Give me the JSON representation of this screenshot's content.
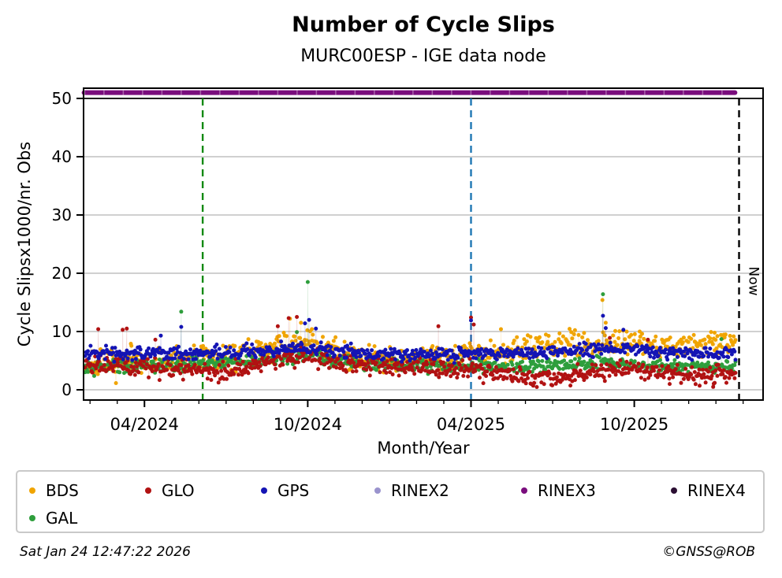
{
  "header": {
    "title": "Number of Cycle Slips",
    "subtitle": "MURC00ESP - IGE data node"
  },
  "footer": {
    "timestamp": "Sat Jan 24 12:47:22 2026",
    "credit": "©GNSS@ROB"
  },
  "legend": {
    "items": [
      {
        "id": "bds",
        "label": "BDS",
        "color": "#f0a400"
      },
      {
        "id": "glo",
        "label": "GLO",
        "color": "#b11212"
      },
      {
        "id": "gps",
        "label": "GPS",
        "color": "#1414b4"
      },
      {
        "id": "rinex2",
        "label": "RINEX2",
        "color": "#9a93cd"
      },
      {
        "id": "rinex3",
        "label": "RINEX3",
        "color": "#7a0d7d"
      },
      {
        "id": "rinex4",
        "label": "RINEX4",
        "color": "#2b0e33"
      },
      {
        "id": "gal",
        "label": "GAL",
        "color": "#2e9e3c"
      }
    ]
  },
  "chart_data": {
    "type": "scatter",
    "title": "Number of Cycle Slips",
    "subtitle": "MURC00ESP - IGE data node",
    "xlabel": "Month/Year",
    "ylabel": "Cycle Slipsx1000/nr. Obs",
    "x_unit": "months_since_2024-01-01",
    "x_shown_range": [
      0.76,
      25.73
    ],
    "x_data_range": [
      0.82,
      24.75
    ],
    "x_major_ticks": [
      {
        "m": 3,
        "label": "04/2024"
      },
      {
        "m": 9,
        "label": "10/2024"
      },
      {
        "m": 15,
        "label": "04/2025"
      },
      {
        "m": 21,
        "label": "10/2025"
      }
    ],
    "x_minor_tick_months": [
      1,
      2,
      4,
      5,
      6,
      7,
      8,
      10,
      11,
      12,
      13,
      14,
      16,
      17,
      18,
      19,
      20,
      22,
      23,
      24,
      25
    ],
    "y_shown_range": [
      -1.76,
      51.75
    ],
    "y_ticks": [
      0,
      10,
      20,
      30,
      40,
      50
    ],
    "gridlines_y_gray": [
      0,
      10,
      20,
      30,
      40
    ],
    "gridlines_y_black": [
      50
    ],
    "grid": "horizontal only",
    "legend_position": "below plot, 6 columns",
    "reference_lines": [
      {
        "name": "rinex3-line",
        "type": "hline",
        "y": 51,
        "m_from": 0.78,
        "m_to": 24.7,
        "color": "#7a0d7d",
        "width": 6,
        "style": "solid"
      },
      {
        "name": "event-line-green",
        "type": "vline",
        "m": 5.14,
        "color": "#128912",
        "style": "dashed"
      },
      {
        "name": "event-line-blue",
        "type": "vline",
        "m": 15.0,
        "color": "#1f77b4",
        "style": "dashed"
      },
      {
        "name": "now-line",
        "type": "vline",
        "m": 24.85,
        "color": "#000000",
        "style": "dashed",
        "label": "Now"
      }
    ],
    "points_per_month": 30,
    "seed": 7,
    "marker_radius": 2.5,
    "series": [
      {
        "name": "BDS",
        "color": "#f0a400",
        "sd": 1.15,
        "mean_profile": [
          [
            0.9,
            4.2
          ],
          [
            2,
            4.4
          ],
          [
            4,
            5.0
          ],
          [
            6,
            5.5
          ],
          [
            7,
            6.4
          ],
          [
            8,
            7.6
          ],
          [
            9,
            8.2
          ],
          [
            9.6,
            7.4
          ],
          [
            10.5,
            6.2
          ],
          [
            11.5,
            5.5
          ],
          [
            12.5,
            5.4
          ],
          [
            14,
            6.0
          ],
          [
            15,
            6.2
          ],
          [
            16,
            6.6
          ],
          [
            17,
            7.2
          ],
          [
            18,
            7.6
          ],
          [
            19,
            7.8
          ],
          [
            20,
            8.2
          ],
          [
            21,
            8.3
          ],
          [
            22,
            7.6
          ],
          [
            23,
            7.4
          ],
          [
            24,
            8.0
          ],
          [
            24.75,
            8.5
          ]
        ],
        "outliers": [
          [
            2.5,
            7.9
          ],
          [
            8.35,
            12.2
          ],
          [
            8.75,
            11.5
          ],
          [
            9.15,
            10.4
          ],
          [
            16.1,
            10.4
          ],
          [
            19.83,
            15.4
          ],
          [
            19.95,
            11.5
          ],
          [
            20.3,
            10.1
          ],
          [
            21.2,
            10.0
          ],
          [
            23.95,
            9.8
          ]
        ]
      },
      {
        "name": "GAL",
        "color": "#2e9e3c",
        "sd": 0.55,
        "mean_profile": [
          [
            0.9,
            4.0
          ],
          [
            3,
            4.2
          ],
          [
            5,
            4.4
          ],
          [
            7,
            4.9
          ],
          [
            8,
            5.7
          ],
          [
            9,
            6.2
          ],
          [
            9.8,
            5.3
          ],
          [
            11,
            4.4
          ],
          [
            13,
            4.2
          ],
          [
            15,
            4.1
          ],
          [
            17,
            4.0
          ],
          [
            18,
            4.2
          ],
          [
            19.9,
            4.6
          ],
          [
            21,
            4.2
          ],
          [
            22.5,
            3.9
          ],
          [
            24.75,
            4.1
          ]
        ],
        "outliers": [
          [
            4.35,
            13.4
          ],
          [
            8.6,
            9.9
          ],
          [
            9.0,
            18.5
          ],
          [
            19.85,
            16.4
          ],
          [
            24.2,
            8.7
          ]
        ]
      },
      {
        "name": "GLO",
        "color": "#b11212",
        "sd": 0.8,
        "mean_profile": [
          [
            0.9,
            4.6
          ],
          [
            2,
            4.3
          ],
          [
            3,
            3.9
          ],
          [
            4.5,
            3.5
          ],
          [
            6,
            3.1
          ],
          [
            7,
            4.0
          ],
          [
            8,
            5.2
          ],
          [
            8.8,
            5.8
          ],
          [
            9.6,
            5.0
          ],
          [
            10.5,
            4.3
          ],
          [
            12,
            4.0
          ],
          [
            13.5,
            3.9
          ],
          [
            15,
            3.6
          ],
          [
            16,
            2.8
          ],
          [
            17,
            2.3
          ],
          [
            18,
            2.1
          ],
          [
            19,
            2.4
          ],
          [
            19.9,
            3.2
          ],
          [
            20.7,
            3.8
          ],
          [
            21.5,
            3.2
          ],
          [
            22.5,
            2.8
          ],
          [
            23.5,
            2.5
          ],
          [
            24.75,
            2.9
          ]
        ],
        "outliers": [
          [
            1.3,
            10.4
          ],
          [
            2.2,
            10.3
          ],
          [
            2.35,
            10.5
          ],
          [
            3.4,
            8.6
          ],
          [
            7.9,
            10.9
          ],
          [
            8.3,
            12.3
          ],
          [
            8.6,
            12.5
          ],
          [
            13.8,
            10.9
          ],
          [
            15.0,
            12.4
          ],
          [
            15.1,
            11.2
          ],
          [
            20.1,
            8.9
          ],
          [
            21.5,
            8.6
          ],
          [
            22.3,
            1.0
          ],
          [
            23.4,
            0.7
          ],
          [
            23.9,
            0.5
          ]
        ]
      },
      {
        "name": "GPS",
        "color": "#1414b4",
        "sd": 0.55,
        "mean_profile": [
          [
            0.9,
            6.3
          ],
          [
            3,
            6.2
          ],
          [
            6,
            6.2
          ],
          [
            7.5,
            6.8
          ],
          [
            8.5,
            7.3
          ],
          [
            9.5,
            7.0
          ],
          [
            11,
            6.2
          ],
          [
            13,
            5.9
          ],
          [
            15,
            6.2
          ],
          [
            17,
            6.4
          ],
          [
            18.5,
            6.7
          ],
          [
            20,
            7.0
          ],
          [
            21,
            7.0
          ],
          [
            22,
            6.5
          ],
          [
            23.5,
            6.3
          ],
          [
            24.75,
            6.4
          ]
        ],
        "outliers": [
          [
            3.6,
            9.3
          ],
          [
            4.35,
            10.8
          ],
          [
            8.9,
            11.4
          ],
          [
            9.05,
            12.0
          ],
          [
            9.3,
            10.5
          ],
          [
            15.0,
            11.9
          ],
          [
            19.85,
            12.7
          ],
          [
            19.95,
            10.6
          ],
          [
            20.6,
            10.3
          ]
        ]
      }
    ]
  }
}
